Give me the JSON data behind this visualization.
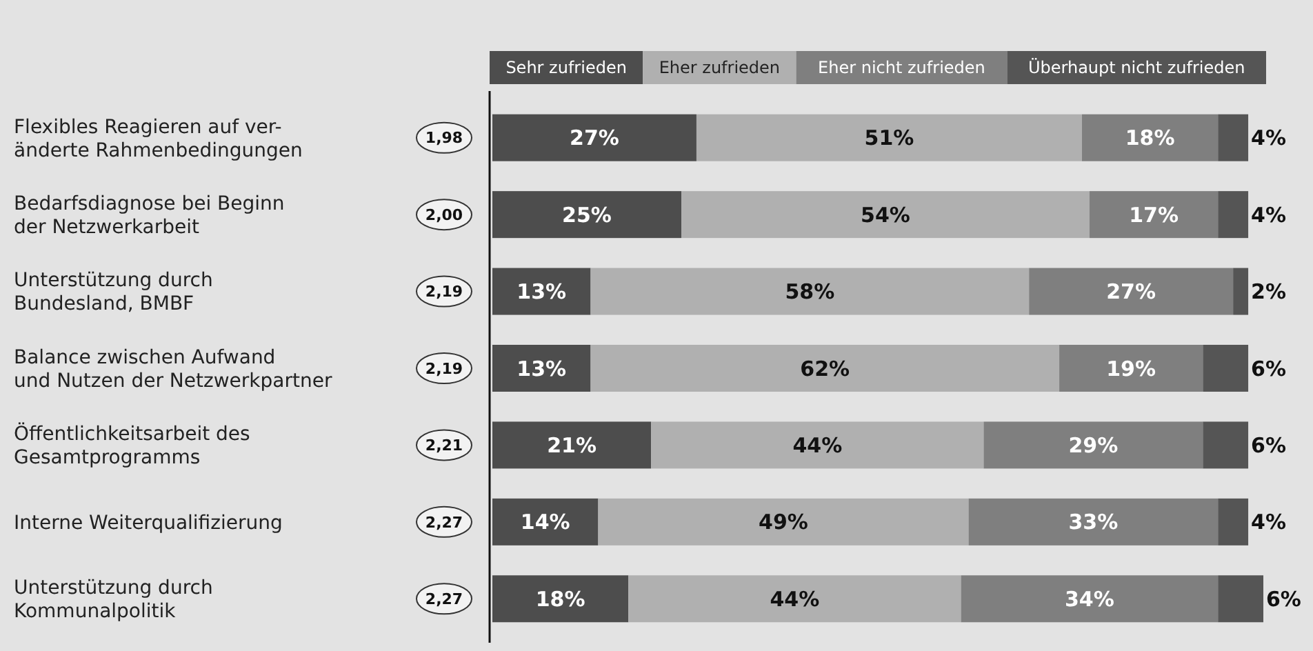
{
  "chart_data": {
    "type": "bar",
    "orientation": "horizontal",
    "stacked": true,
    "legend": "top",
    "xlim": [
      0,
      102
    ],
    "tick_labels": "y",
    "categories": [
      "Flexibles Reagieren auf ver-\nänderte Rahmenbedingungen",
      "Bedarfsdiagnose bei Beginn\nder Netzwerkarbeit",
      "Unterstützung durch\nBundesland, BMBF",
      "Balance zwischen Aufwand\nund Nutzen der Netzwerkpartner",
      "Öffentlichkeitsarbeit des\nGesamtprogramms",
      "Interne Weiterqualifizierung",
      "Unterstützung durch\nKommunalpolitik"
    ],
    "series": [
      {
        "name": "Sehr zufrieden",
        "color": "#4d4d4d",
        "values": [
          27,
          25,
          13,
          13,
          21,
          14,
          18
        ],
        "value_labels": [
          "27%",
          "25%",
          "13%",
          "13%",
          "21%",
          "14%",
          "18%"
        ]
      },
      {
        "name": "Eher zufrieden",
        "color": "#b0b0b0",
        "values": [
          51,
          54,
          58,
          62,
          44,
          49,
          44
        ],
        "value_labels": [
          "51%",
          "54%",
          "58%",
          "62%",
          "44%",
          "49%",
          "44%"
        ]
      },
      {
        "name": "Eher nicht zufrieden",
        "color": "#7f7f7f",
        "values": [
          18,
          17,
          27,
          19,
          29,
          33,
          34
        ],
        "value_labels": [
          "18%",
          "17%",
          "27%",
          "19%",
          "29%",
          "33%",
          "34%"
        ]
      },
      {
        "name": "Überhaupt nicht zufrieden",
        "color": "#555555",
        "values": [
          4,
          4,
          2,
          6,
          6,
          4,
          6
        ],
        "value_labels": [
          "4%",
          "4%",
          "2%",
          "6%",
          "6%",
          "4%",
          "6%"
        ]
      }
    ],
    "annotations": [
      "1,98",
      "2,00",
      "2,19",
      "2,19",
      "2,21",
      "2,27",
      "2,27"
    ]
  }
}
